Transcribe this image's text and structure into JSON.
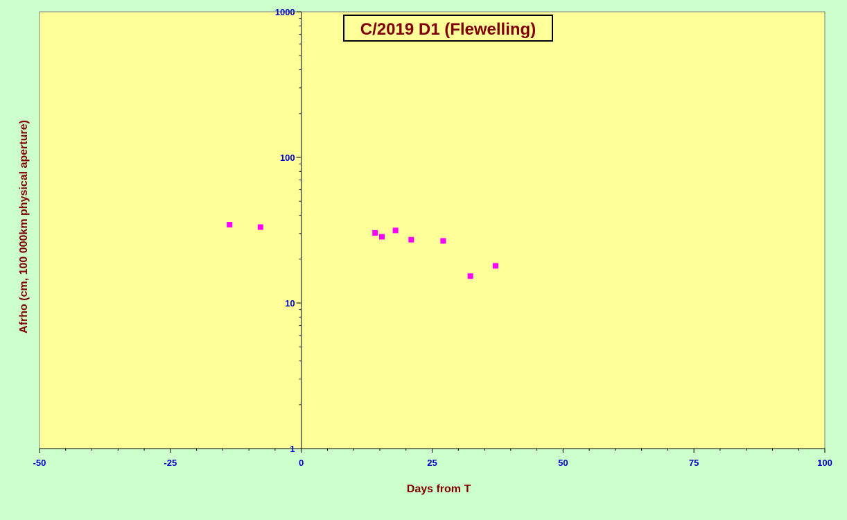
{
  "chart_data": {
    "type": "scatter",
    "title": "C/2019 D1 (Flewelling)",
    "xlabel": "Days from T",
    "ylabel": "Afrho (cm, 100 000km physical aperture)",
    "xlim": [
      -50,
      100
    ],
    "ylim": [
      1,
      1000
    ],
    "yscale": "log",
    "x_ticks": [
      -50,
      -25,
      0,
      25,
      50,
      75,
      100
    ],
    "x_tick_labels": [
      "-50",
      "-25",
      "0",
      "25",
      "50",
      "75",
      "100"
    ],
    "y_ticks": [
      1,
      10,
      100,
      1000
    ],
    "y_tick_labels": [
      "1",
      "10",
      "100",
      "1000"
    ],
    "grid": false,
    "legend": "none",
    "series": [
      {
        "marker_color": "#ff00ff",
        "x": [
          -13.7,
          -7.8,
          14.1,
          15.4,
          18.0,
          21.0,
          27.1,
          32.3,
          37.1
        ],
        "y": [
          34.5,
          33.2,
          30.3,
          28.5,
          31.5,
          27.2,
          26.7,
          15.3,
          18.0
        ]
      }
    ],
    "colors": {
      "page_background": "#ccffcc",
      "plot_background": "#ffff99",
      "axis_text": "#0000cc",
      "title_text": "#800000"
    }
  }
}
